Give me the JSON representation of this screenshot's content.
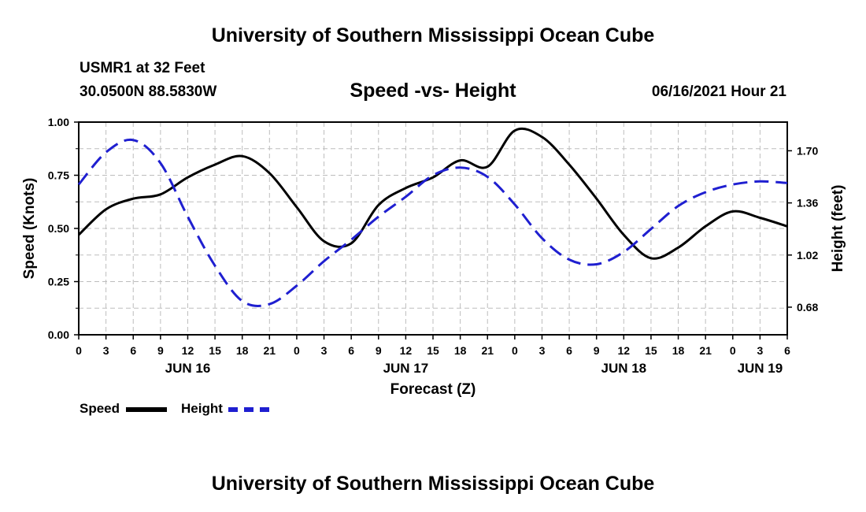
{
  "header": {
    "title": "University of Southern Mississippi Ocean Cube",
    "station": "USMR1 at 32 Feet",
    "coordinates": "30.0500N  88.5830W",
    "subtitle": "Speed -vs- Height",
    "datetime": "06/16/2021 Hour 21"
  },
  "footer": {
    "title": "University of Southern Mississippi Ocean Cube"
  },
  "legend": {
    "items": [
      {
        "label": "Speed",
        "color": "#000000",
        "style": "solid"
      },
      {
        "label": "Height",
        "color": "#1f1fd0",
        "style": "dashed"
      }
    ]
  },
  "chart_data": {
    "type": "line",
    "title": "Speed -vs- Height",
    "xlabel": "Forecast (Z)",
    "ylabel_left": "Speed (Knots)",
    "ylabel_right": "Height (feet)",
    "xlim": [
      0,
      78
    ],
    "ylim_left": [
      0,
      1
    ],
    "ylim_right": [
      0.5,
      1.887
    ],
    "x_ticks": [
      0,
      3,
      6,
      9,
      12,
      15,
      18,
      21,
      24,
      27,
      30,
      33,
      36,
      39,
      42,
      45,
      48,
      51,
      54,
      57,
      60,
      63,
      66,
      69,
      72,
      75,
      78
    ],
    "x_tick_labels": [
      "0",
      "3",
      "6",
      "9",
      "12",
      "15",
      "18",
      "21",
      "0",
      "3",
      "6",
      "9",
      "12",
      "15",
      "18",
      "21",
      "0",
      "3",
      "6",
      "9",
      "12",
      "15",
      "18",
      "21",
      "0",
      "3",
      "6"
    ],
    "day_labels": [
      {
        "x": 12,
        "label": "JUN 16"
      },
      {
        "x": 36,
        "label": "JUN 17"
      },
      {
        "x": 60,
        "label": "JUN 18"
      },
      {
        "x": 75,
        "label": "JUN 19"
      }
    ],
    "y_left_ticks": [
      0,
      0.25,
      0.5,
      0.75,
      1.0
    ],
    "y_left_tick_labels": [
      "0.00",
      "0.25",
      "0.50",
      "0.75",
      "1.00"
    ],
    "y_right_ticks": [
      0.68,
      1.02,
      1.36,
      1.7
    ],
    "y_right_tick_labels": [
      "0.68",
      "1.02",
      "1.36",
      "1.70"
    ],
    "series": [
      {
        "name": "Speed",
        "axis": "left",
        "color": "#000000",
        "dashed": false,
        "x": [
          0,
          3,
          6,
          9,
          12,
          15,
          18,
          21,
          24,
          27,
          30,
          33,
          36,
          39,
          42,
          45,
          48,
          51,
          54,
          57,
          60,
          63,
          66,
          69,
          72,
          75,
          78
        ],
        "values": [
          0.47,
          0.59,
          0.64,
          0.66,
          0.74,
          0.8,
          0.84,
          0.76,
          0.6,
          0.44,
          0.43,
          0.61,
          0.69,
          0.74,
          0.82,
          0.79,
          0.96,
          0.93,
          0.8,
          0.64,
          0.47,
          0.36,
          0.41,
          0.51,
          0.58,
          0.55,
          0.51
        ]
      },
      {
        "name": "Height",
        "axis": "right",
        "color": "#1f1fd0",
        "dashed": false,
        "x": [
          0,
          3,
          6,
          9,
          12,
          15,
          18,
          21,
          24,
          27,
          30,
          33,
          36,
          39,
          42,
          45,
          48,
          51,
          54,
          57,
          60,
          63,
          66,
          69,
          72,
          75,
          78
        ],
        "values": [
          1.48,
          1.69,
          1.77,
          1.62,
          1.27,
          0.95,
          0.72,
          0.7,
          0.82,
          0.98,
          1.12,
          1.27,
          1.4,
          1.54,
          1.59,
          1.53,
          1.35,
          1.13,
          0.99,
          0.96,
          1.04,
          1.19,
          1.34,
          1.43,
          1.48,
          1.5,
          1.49
        ]
      }
    ]
  }
}
